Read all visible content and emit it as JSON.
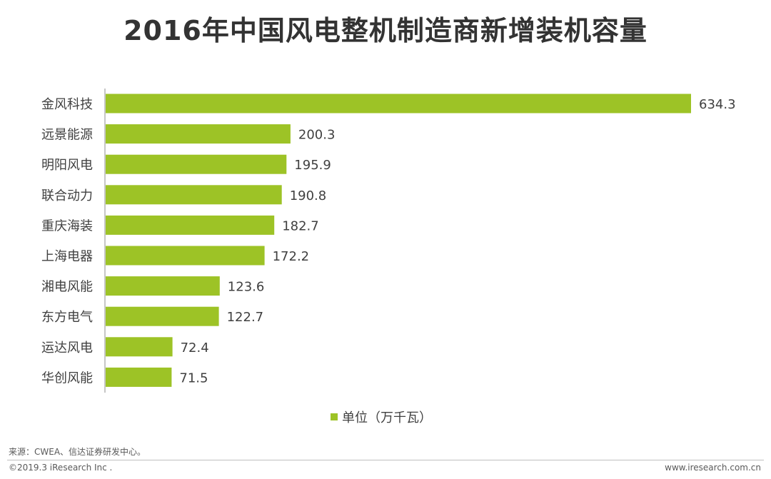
{
  "chart_data": {
    "type": "bar",
    "orientation": "horizontal",
    "title": "2016年中国风电整机制造商新增装机容量",
    "categories": [
      "金风科技",
      "远景能源",
      "明阳风电",
      "联合动力",
      "重庆海装",
      "上海电器",
      "湘电风能",
      "东方电气",
      "运达风电",
      "华创风能"
    ],
    "series": [
      {
        "name": "单位（万千瓦）",
        "values": [
          634.3,
          200.3,
          195.9,
          190.8,
          182.7,
          172.2,
          123.6,
          122.7,
          72.4,
          71.5
        ],
        "color": "#9DC326"
      }
    ],
    "xlim": [
      0,
      634.3
    ],
    "grid": false,
    "legend_position": "bottom-center"
  },
  "footer": {
    "source": "来源：CWEA、信达证券研发中心。",
    "copyright": "©2019.3 iResearch Inc .",
    "website": "www.iresearch.com.cn"
  }
}
